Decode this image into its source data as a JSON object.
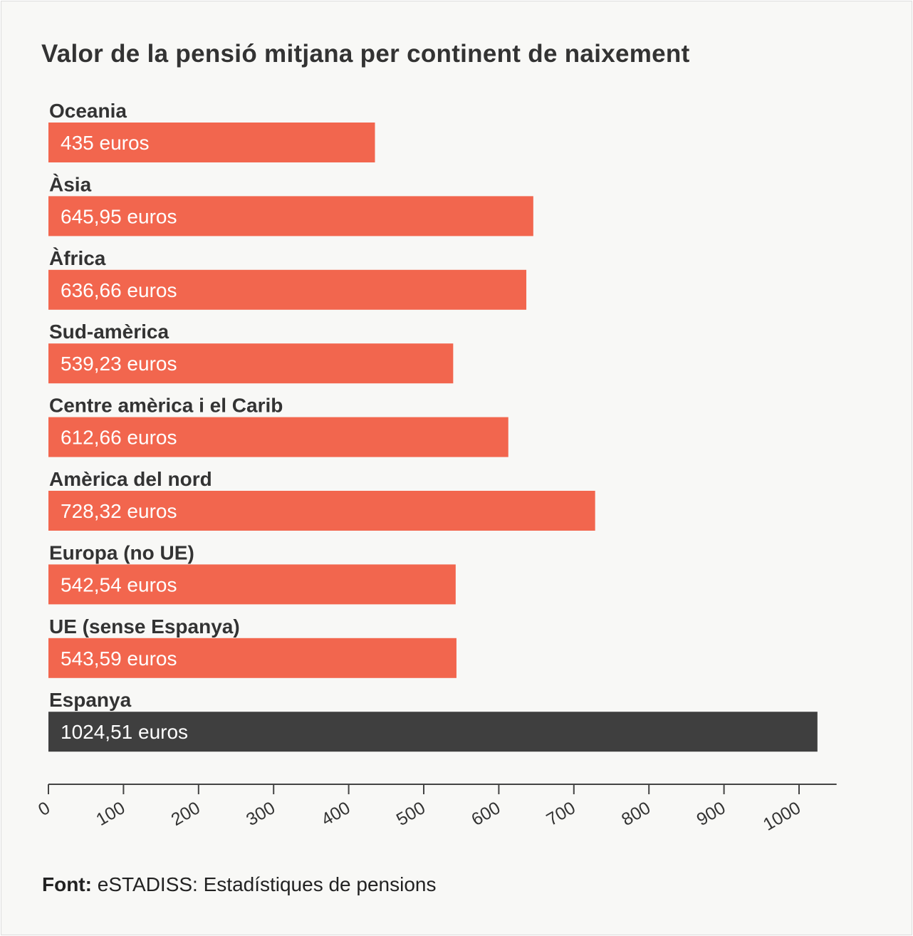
{
  "chart_data": {
    "type": "bar",
    "orientation": "horizontal",
    "title": "Valor de la pensió mitjana per continent de naixement",
    "categories": [
      "Oceania",
      "Àsia",
      "Àfrica",
      "Sud-amèrica",
      "Centre amèrica i el Carib",
      "Amèrica del nord",
      "Europa (no UE)",
      "UE (sense Espanya)",
      "Espanya"
    ],
    "values": [
      435,
      645.95,
      636.66,
      539.23,
      612.66,
      728.32,
      542.54,
      543.59,
      1024.51
    ],
    "data_labels": [
      "435 euros",
      "645,95 euros",
      "636,66 euros",
      "539,23 euros",
      "612,66 euros",
      "728,32 euros",
      "542,54 euros",
      "543,59 euros",
      "1024,51 euros"
    ],
    "colors": [
      "#f2664e",
      "#f2664e",
      "#f2664e",
      "#f2664e",
      "#f2664e",
      "#f2664e",
      "#f2664e",
      "#f2664e",
      "#3f3f3f"
    ],
    "xlim": [
      0,
      1050
    ],
    "xticks": [
      "0",
      "100",
      "200",
      "300",
      "400",
      "500",
      "600",
      "700",
      "800",
      "900",
      "1000"
    ],
    "grid": false,
    "xlabel": "",
    "ylabel": ""
  },
  "source": {
    "label": "Font:",
    "text": "eSTADISS: Estadístiques de pensions"
  }
}
